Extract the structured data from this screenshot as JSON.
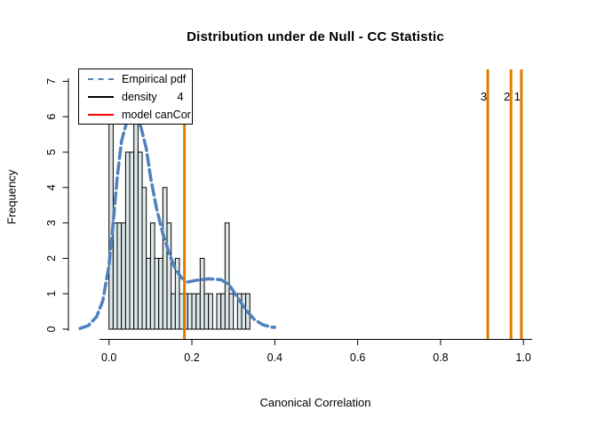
{
  "title": "Distribution under de Null - CC Statistic",
  "chart_data": {
    "type": "bar",
    "subtype": "histogram-with-density",
    "title": "Distribution under de Null - CC Statistic",
    "xlabel": "Canonical Correlation",
    "ylabel": "Frequency",
    "x_ticks": [
      "0.0",
      "0.2",
      "0.4",
      "0.6",
      "0.8",
      "1.0"
    ],
    "x_tick_values": [
      0.0,
      0.2,
      0.4,
      0.6,
      0.8,
      1.0
    ],
    "y_ticks": [
      "0",
      "1",
      "2",
      "3",
      "4",
      "5",
      "6",
      "7"
    ],
    "y_tick_values": [
      0,
      1,
      2,
      3,
      4,
      5,
      6,
      7
    ],
    "xlim": [
      -0.04,
      1.04
    ],
    "ylim": [
      0,
      7.3
    ],
    "grid": "off",
    "legend_position": "top-left",
    "histogram": {
      "bin_start": 0.0,
      "bin_width": 0.01,
      "counts": [
        6,
        3,
        3,
        3,
        5,
        5,
        7,
        5,
        4,
        2,
        3,
        2,
        2,
        4,
        3,
        1,
        2,
        1,
        1,
        1,
        1,
        1,
        2,
        1,
        1,
        0,
        1,
        1,
        3,
        1,
        0,
        1,
        1,
        1
      ]
    },
    "density_curve": {
      "name": "Empirical pdf",
      "points": [
        [
          -0.07,
          0.02
        ],
        [
          -0.05,
          0.1
        ],
        [
          -0.03,
          0.35
        ],
        [
          -0.015,
          0.8
        ],
        [
          0.0,
          1.8
        ],
        [
          0.01,
          3.0
        ],
        [
          0.02,
          4.3
        ],
        [
          0.03,
          5.3
        ],
        [
          0.045,
          5.95
        ],
        [
          0.06,
          6.05
        ],
        [
          0.075,
          5.8
        ],
        [
          0.09,
          5.1
        ],
        [
          0.1,
          4.3
        ],
        [
          0.115,
          3.4
        ],
        [
          0.13,
          2.7
        ],
        [
          0.145,
          2.15
        ],
        [
          0.16,
          1.7
        ],
        [
          0.175,
          1.45
        ],
        [
          0.19,
          1.33
        ],
        [
          0.21,
          1.38
        ],
        [
          0.24,
          1.42
        ],
        [
          0.27,
          1.4
        ],
        [
          0.29,
          1.25
        ],
        [
          0.31,
          0.9
        ],
        [
          0.33,
          0.55
        ],
        [
          0.35,
          0.28
        ],
        [
          0.37,
          0.13
        ],
        [
          0.39,
          0.06
        ],
        [
          0.4,
          0.05
        ]
      ]
    },
    "cutoff_lines": [
      {
        "label": "4",
        "x": 0.182
      },
      {
        "label": "3",
        "x": 0.914
      },
      {
        "label": "2",
        "x": 0.97
      },
      {
        "label": "1",
        "x": 0.995
      }
    ],
    "legend": [
      {
        "label": "Empirical pdf",
        "color": "#4f81bd",
        "style": "dashed"
      },
      {
        "label": "density",
        "color": "#000000",
        "style": "solid"
      },
      {
        "label": "model canCor",
        "color": "#ff0000",
        "style": "solid"
      }
    ],
    "colors": {
      "bar_fill": "#dce8ea",
      "bar_border": "#000000",
      "curve": "#4f81bd",
      "cutoff": "#e07c00",
      "axis": "#000000"
    }
  }
}
